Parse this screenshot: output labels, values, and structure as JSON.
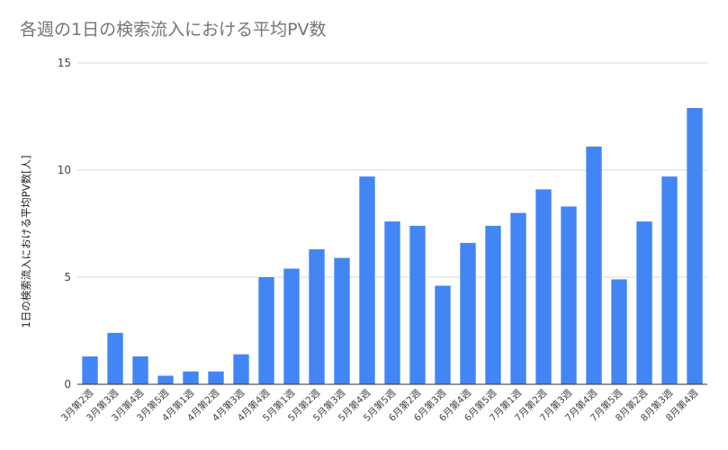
{
  "chart_data": {
    "type": "bar",
    "title": "各週の1日の検索流入における平均PV数",
    "xlabel": "",
    "ylabel": "1日の検索流入における平均PV数[人]",
    "ylim": [
      0,
      15
    ],
    "yticks": [
      0,
      5,
      10,
      15
    ],
    "grid": true,
    "bar_color": "#4285f4",
    "gridline_color": "#d9d9d9",
    "baseline_color": "#333333",
    "categories": [
      "3月第2週",
      "3月第3週",
      "3月第4週",
      "3月第5週",
      "4月第1週",
      "4月第2週",
      "4月第3週",
      "4月第4週",
      "5月第1週",
      "5月第2週",
      "5月第3週",
      "5月第4週",
      "5月第5週",
      "6月第2週",
      "6月第3週",
      "6月第4週",
      "6月第5週",
      "7月第1週",
      "7月第2週",
      "7月第3週",
      "7月第4週",
      "7月第5週",
      "8月第2週",
      "8月第3週",
      "8月第4週"
    ],
    "values": [
      1.3,
      2.4,
      1.3,
      0.4,
      0.6,
      0.6,
      1.4,
      5.0,
      5.4,
      6.3,
      5.9,
      9.7,
      7.6,
      7.4,
      4.6,
      6.6,
      7.4,
      8.0,
      9.1,
      8.3,
      11.1,
      4.9,
      7.6,
      9.7,
      12.9
    ]
  }
}
